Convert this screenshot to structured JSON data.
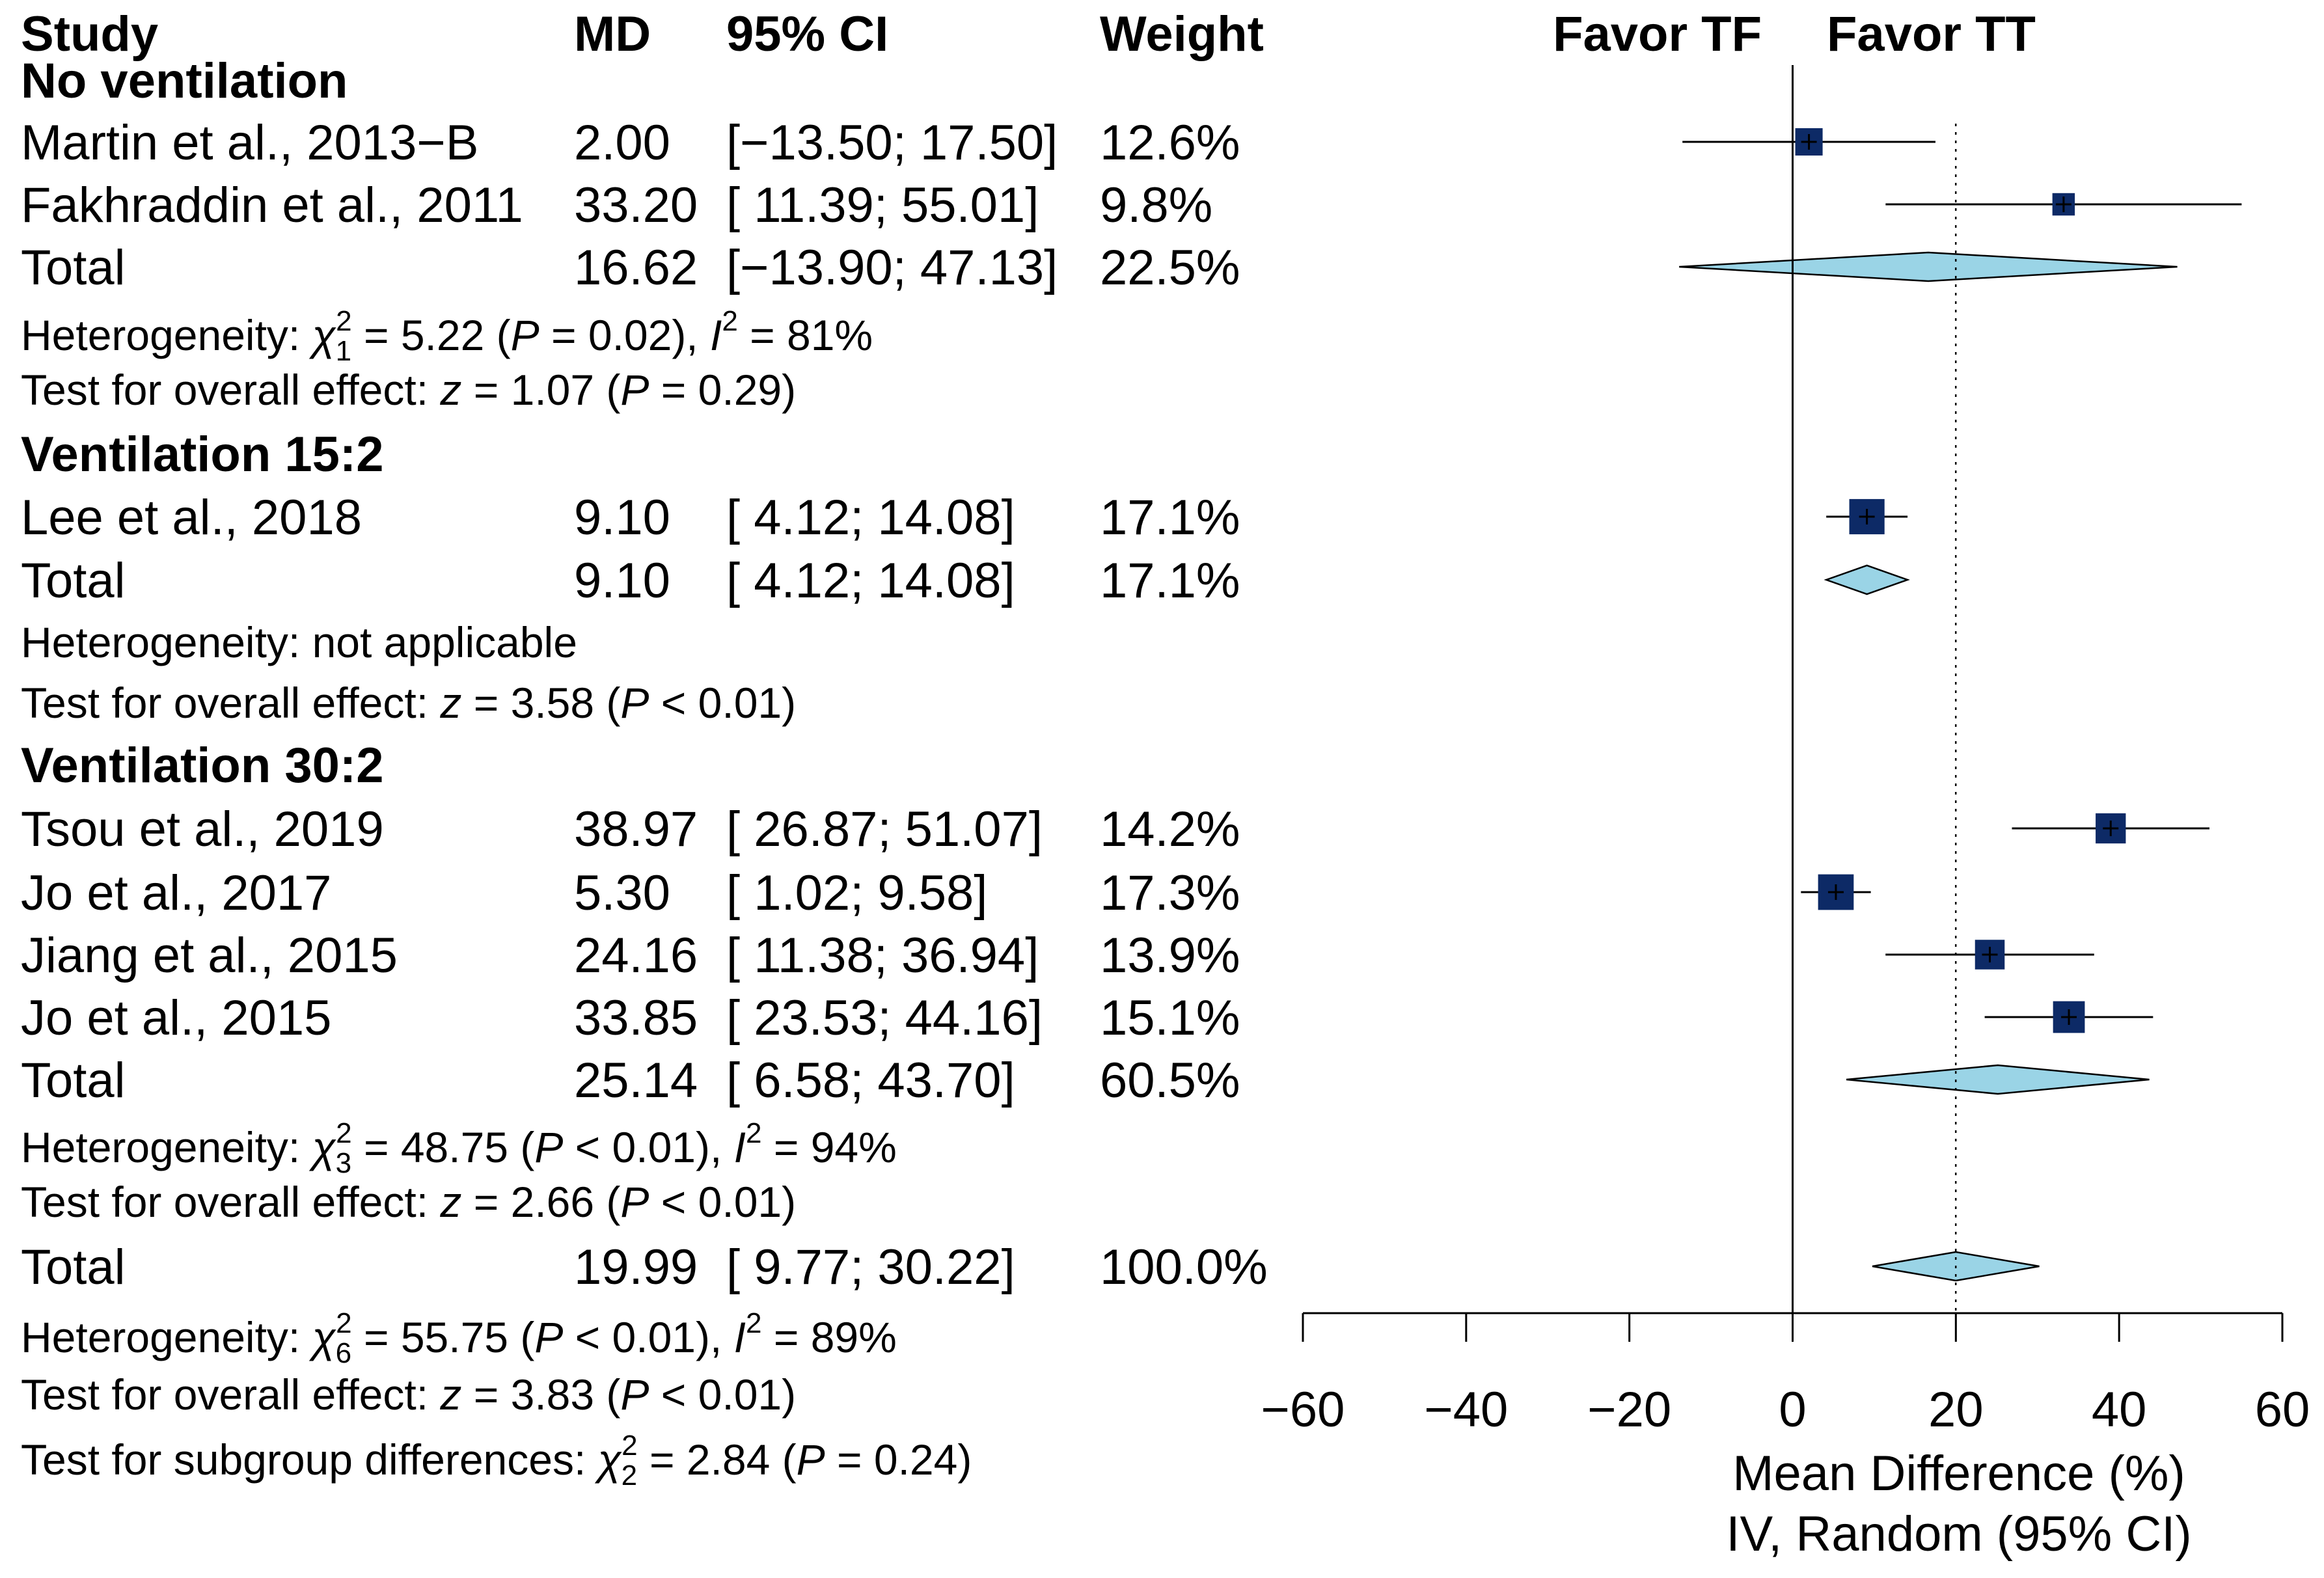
{
  "chart_data": {
    "type": "forest",
    "headers": {
      "study": "Study",
      "md": "MD",
      "ci": "95% CI",
      "weight": "Weight"
    },
    "favor_left": "Favor TF",
    "favor_right": "Favor TT",
    "xlim": [
      -60,
      60
    ],
    "ticks": [
      {
        "value": -60,
        "label": "−60"
      },
      {
        "value": -40,
        "label": "−40"
      },
      {
        "value": -20,
        "label": "−20"
      },
      {
        "value": 0,
        "label": "0"
      },
      {
        "value": 20,
        "label": "20"
      },
      {
        "value": 40,
        "label": "40"
      },
      {
        "value": 60,
        "label": "60"
      }
    ],
    "xlabel": "Mean Difference (%)",
    "xlabel2": "IV, Random (95% CI)",
    "overall_reference": 19.99,
    "rows": [
      {
        "kind": "group",
        "label": "No ventilation"
      },
      {
        "kind": "study",
        "study": "Martin et al., 2013−B",
        "md": 2.0,
        "lo": -13.5,
        "hi": 17.5,
        "md_text": "2.00",
        "ci_text": "[−13.50; 17.50]",
        "weight_text": "12.6%",
        "weight": 12.6
      },
      {
        "kind": "study",
        "study": "Fakhraddin et al., 2011",
        "md": 33.2,
        "lo": 11.39,
        "hi": 55.01,
        "md_text": "33.20",
        "ci_text": "[ 11.39; 55.01]",
        "weight_text": "9.8%",
        "weight": 9.8
      },
      {
        "kind": "total",
        "study": "Total",
        "md": 16.62,
        "lo": -13.9,
        "hi": 47.13,
        "md_text": "16.62",
        "ci_text": "[−13.90; 47.13]",
        "weight_text": "22.5%"
      },
      {
        "kind": "stat",
        "parts": [
          [
            "Heterogeneity: "
          ],
          [
            "χ",
            "i"
          ],
          [
            "1",
            "sub"
          ],
          [
            "2",
            "sup"
          ],
          [
            " = 5.22 ("
          ],
          [
            "P",
            "i"
          ],
          [
            " = 0.02), "
          ],
          [
            "I",
            "i"
          ],
          [
            "2",
            "sup"
          ],
          [
            " = 81%"
          ]
        ]
      },
      {
        "kind": "stat",
        "parts": [
          [
            "Test for overall effect: "
          ],
          [
            "z",
            "i"
          ],
          [
            " = 1.07 ("
          ],
          [
            "P",
            "i"
          ],
          [
            " = 0.29)"
          ]
        ]
      },
      {
        "kind": "group",
        "label": "Ventilation 15:2"
      },
      {
        "kind": "study",
        "study": "Lee et al., 2018",
        "md": 9.1,
        "lo": 4.12,
        "hi": 14.08,
        "md_text": "9.10",
        "ci_text": "[ 4.12; 14.08]",
        "weight_text": "17.1%",
        "weight": 17.1
      },
      {
        "kind": "total",
        "study": "Total",
        "md": 9.1,
        "lo": 4.12,
        "hi": 14.08,
        "md_text": "9.10",
        "ci_text": "[ 4.12; 14.08]",
        "weight_text": "17.1%"
      },
      {
        "kind": "stat",
        "parts": [
          [
            "Heterogeneity: not applicable"
          ]
        ]
      },
      {
        "kind": "stat",
        "parts": [
          [
            "Test for overall effect: "
          ],
          [
            "z",
            "i"
          ],
          [
            " = 3.58 ("
          ],
          [
            "P",
            "i"
          ],
          [
            " < 0.01)"
          ]
        ]
      },
      {
        "kind": "group",
        "label": "Ventilation 30:2"
      },
      {
        "kind": "study",
        "study": "Tsou et al., 2019",
        "md": 38.97,
        "lo": 26.87,
        "hi": 51.07,
        "md_text": "38.97",
        "ci_text": "[ 26.87; 51.07]",
        "weight_text": "14.2%",
        "weight": 14.2
      },
      {
        "kind": "study",
        "study": "Jo et al., 2017",
        "md": 5.3,
        "lo": 1.02,
        "hi": 9.58,
        "md_text": "5.30",
        "ci_text": "[ 1.02; 9.58]",
        "weight_text": "17.3%",
        "weight": 17.3
      },
      {
        "kind": "study",
        "study": "Jiang et al., 2015",
        "md": 24.16,
        "lo": 11.38,
        "hi": 36.94,
        "md_text": "24.16",
        "ci_text": "[ 11.38; 36.94]",
        "weight_text": "13.9%",
        "weight": 13.9
      },
      {
        "kind": "study",
        "study": "Jo et al., 2015",
        "md": 33.85,
        "lo": 23.53,
        "hi": 44.16,
        "md_text": "33.85",
        "ci_text": "[ 23.53; 44.16]",
        "weight_text": "15.1%",
        "weight": 15.1
      },
      {
        "kind": "total",
        "study": "Total",
        "md": 25.14,
        "lo": 6.58,
        "hi": 43.7,
        "md_text": "25.14",
        "ci_text": "[ 6.58; 43.70]",
        "weight_text": "60.5%"
      },
      {
        "kind": "stat",
        "parts": [
          [
            "Heterogeneity: "
          ],
          [
            "χ",
            "i"
          ],
          [
            "3",
            "sub"
          ],
          [
            "2",
            "sup"
          ],
          [
            " = 48.75 ("
          ],
          [
            "P",
            "i"
          ],
          [
            " < 0.01), "
          ],
          [
            "I",
            "i"
          ],
          [
            "2",
            "sup"
          ],
          [
            " = 94%"
          ]
        ]
      },
      {
        "kind": "stat",
        "parts": [
          [
            "Test for overall effect: "
          ],
          [
            "z",
            "i"
          ],
          [
            " = 2.66 ("
          ],
          [
            "P",
            "i"
          ],
          [
            " < 0.01)"
          ]
        ]
      },
      {
        "kind": "overall",
        "study": "Total",
        "md": 19.99,
        "lo": 9.77,
        "hi": 30.22,
        "md_text": "19.99",
        "ci_text": "[ 9.77; 30.22]",
        "weight_text": "100.0%"
      },
      {
        "kind": "stat",
        "parts": [
          [
            "Heterogeneity: "
          ],
          [
            "χ",
            "i"
          ],
          [
            "6",
            "sub"
          ],
          [
            "2",
            "sup"
          ],
          [
            " = 55.75 ("
          ],
          [
            "P",
            "i"
          ],
          [
            " < 0.01), "
          ],
          [
            "I",
            "i"
          ],
          [
            "2",
            "sup"
          ],
          [
            " = 89%"
          ]
        ]
      },
      {
        "kind": "stat",
        "parts": [
          [
            "Test for overall effect: "
          ],
          [
            "z",
            "i"
          ],
          [
            " = 3.83 ("
          ],
          [
            "P",
            "i"
          ],
          [
            " < 0.01)"
          ]
        ]
      },
      {
        "kind": "stat",
        "parts": [
          [
            "Test for subgroup differences: "
          ],
          [
            "χ",
            "i"
          ],
          [
            "2",
            "sub"
          ],
          [
            "2",
            "sup"
          ],
          [
            " = 2.84 ("
          ],
          [
            "P",
            "i"
          ],
          [
            " = 0.24)"
          ]
        ]
      }
    ],
    "colors": {
      "square": "#0d2a66",
      "diamond": "#9ad4e6",
      "line": "#000000"
    }
  }
}
